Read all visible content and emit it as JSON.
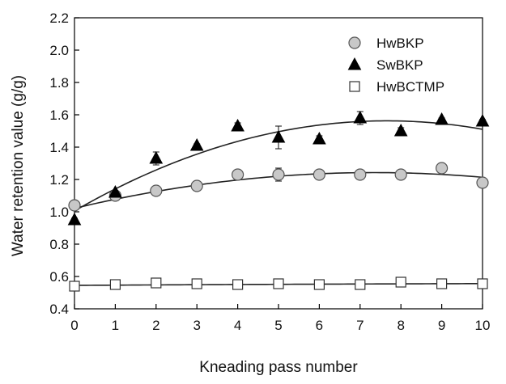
{
  "chart_data": {
    "type": "scatter",
    "title": "",
    "xlabel": "Kneading pass number",
    "ylabel": "Water retention value (g/g)",
    "xlim": [
      0,
      10
    ],
    "ylim": [
      0.4,
      2.2
    ],
    "x_ticks": [
      0,
      1,
      2,
      3,
      4,
      5,
      6,
      7,
      8,
      9,
      10
    ],
    "x_tick_labels": [
      "0",
      "1",
      "2",
      "3",
      "4",
      "5",
      "6",
      "7",
      "8",
      "9",
      "10"
    ],
    "y_ticks": [
      0.4,
      0.6,
      0.8,
      1.0,
      1.2,
      1.4,
      1.6,
      1.8,
      2.0,
      2.2
    ],
    "y_tick_labels": [
      "0.4",
      "0.6",
      "0.8",
      "1.0",
      "1.2",
      "1.4",
      "1.6",
      "1.8",
      "2.0",
      "2.2"
    ],
    "grid": false,
    "legend_position": "top-right",
    "x": [
      0,
      1,
      2,
      3,
      4,
      5,
      6,
      7,
      8,
      9,
      10
    ],
    "series": [
      {
        "name": "HwBKP",
        "marker": "circle",
        "fill": "#c8c8c8",
        "stroke": "#555555",
        "values": [
          1.04,
          1.1,
          1.13,
          1.16,
          1.23,
          1.23,
          1.23,
          1.23,
          1.23,
          1.27,
          1.18
        ],
        "errors": [
          0.01,
          0.01,
          0.01,
          0.01,
          0.01,
          0.04,
          0.02,
          0.01,
          0.01,
          0.01,
          0.01
        ],
        "trend_poly": [
          1.0215,
          0.0602,
          -0.0041
        ]
      },
      {
        "name": "SwBKP",
        "marker": "triangle",
        "fill": "#000000",
        "stroke": "#000000",
        "values": [
          0.95,
          1.12,
          1.33,
          1.41,
          1.53,
          1.46,
          1.45,
          1.58,
          1.5,
          1.57,
          1.56
        ],
        "errors": [
          0.01,
          0.01,
          0.04,
          0.01,
          0.02,
          0.07,
          0.02,
          0.04,
          0.02,
          0.01,
          0.01
        ],
        "trend_poly": [
          1.0055,
          0.1455,
          -0.0095
        ]
      },
      {
        "name": "HwBCTMP",
        "marker": "square",
        "fill": "#ffffff",
        "stroke": "#333333",
        "values": [
          0.54,
          0.55,
          0.56,
          0.555,
          0.55,
          0.555,
          0.55,
          0.55,
          0.565,
          0.555,
          0.555
        ],
        "errors": [
          0,
          0,
          0,
          0,
          0,
          0,
          0,
          0,
          0,
          0,
          0
        ],
        "trend_poly": [
          0.545,
          0.0015,
          -4e-05
        ]
      }
    ]
  }
}
